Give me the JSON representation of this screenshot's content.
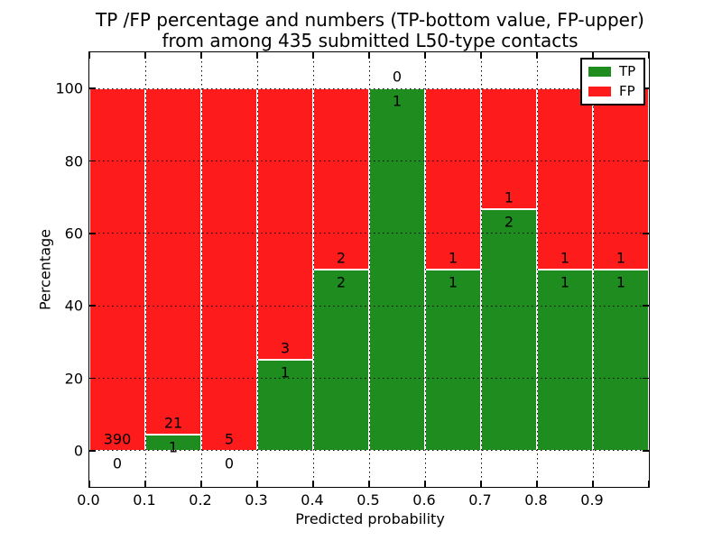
{
  "chart_data": {
    "type": "bar",
    "stacked": true,
    "title_line1": "TP /FP percentage and numbers (TP-bottom value, FP-upper)",
    "title_line2": "from among 435 submitted L50-type contacts",
    "xlabel": "Predicted probability",
    "ylabel": "Percentage",
    "total_contacts": 435,
    "xlim": [
      0.0,
      1.0
    ],
    "ylim": [
      -10,
      110
    ],
    "bin_width": 0.1,
    "x_tick_labels": [
      "0.0",
      "0.1",
      "0.2",
      "0.3",
      "0.4",
      "0.5",
      "0.6",
      "0.7",
      "0.8",
      "0.9"
    ],
    "y_tick_values": [
      0,
      20,
      40,
      60,
      80,
      100
    ],
    "y_tick_labels": [
      "0",
      "20",
      "40",
      "60",
      "80",
      "100"
    ],
    "grid": "dotted",
    "legend_position": "upper right",
    "series": [
      {
        "name": "TP",
        "color": "#1e8c1e",
        "counts": [
          0,
          1,
          0,
          1,
          2,
          1,
          1,
          2,
          1,
          1
        ]
      },
      {
        "name": "FP",
        "color": "#fe1b1b",
        "counts": [
          390,
          21,
          5,
          3,
          2,
          0,
          1,
          1,
          1,
          1
        ]
      }
    ],
    "bins": [
      {
        "range": "0.0-0.1",
        "tp": 0,
        "fp": 390,
        "tp_pct": 0
      },
      {
        "range": "0.1-0.2",
        "tp": 1,
        "fp": 21,
        "tp_pct": 4.5
      },
      {
        "range": "0.2-0.3",
        "tp": 0,
        "fp": 5,
        "tp_pct": 0
      },
      {
        "range": "0.3-0.4",
        "tp": 1,
        "fp": 3,
        "tp_pct": 25
      },
      {
        "range": "0.4-0.5",
        "tp": 2,
        "fp": 2,
        "tp_pct": 50
      },
      {
        "range": "0.5-0.6",
        "tp": 1,
        "fp": 0,
        "tp_pct": 100
      },
      {
        "range": "0.6-0.7",
        "tp": 1,
        "fp": 1,
        "tp_pct": 50
      },
      {
        "range": "0.7-0.8",
        "tp": 2,
        "fp": 1,
        "tp_pct": 66.7
      },
      {
        "range": "0.8-0.9",
        "tp": 1,
        "fp": 1,
        "tp_pct": 50
      },
      {
        "range": "0.9-1.0",
        "tp": 1,
        "fp": 1,
        "tp_pct": 50
      }
    ]
  }
}
